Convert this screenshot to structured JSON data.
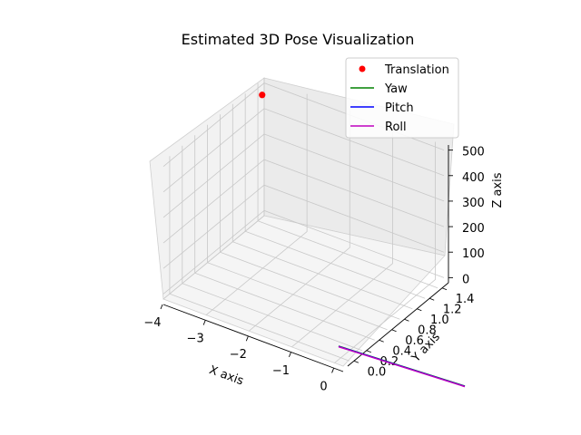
{
  "chart_data": {
    "type": "scatter",
    "title": "Estimated 3D Pose Visualization",
    "xlabel": "X axis",
    "ylabel": "Y axis",
    "zlabel": "Z axis",
    "projection": "3d",
    "grid": true,
    "legend_position": "top-right",
    "xlim": [
      -4,
      0.2
    ],
    "ylim": [
      -0.1,
      1.5
    ],
    "zlim": [
      -20,
      520
    ],
    "x_ticks": [
      "−4",
      "−3",
      "−2",
      "−1",
      "0"
    ],
    "y_ticks": [
      "0.0",
      "0.2",
      "0.4",
      "0.6",
      "0.8",
      "1.0",
      "1.2",
      "1.4"
    ],
    "z_ticks": [
      "0",
      "100",
      "200",
      "300",
      "400",
      "500"
    ],
    "series": [
      {
        "name": "Translation",
        "kind": "point",
        "color": "#ff0000",
        "x": [
          -3.9
        ],
        "y": [
          1.4
        ],
        "z": [
          480
        ]
      },
      {
        "name": "Yaw",
        "kind": "line",
        "color": "#008000"
      },
      {
        "name": "Pitch",
        "kind": "line",
        "color": "#0000ff"
      },
      {
        "name": "Roll",
        "kind": "line",
        "color": "#bf00bf"
      }
    ]
  }
}
